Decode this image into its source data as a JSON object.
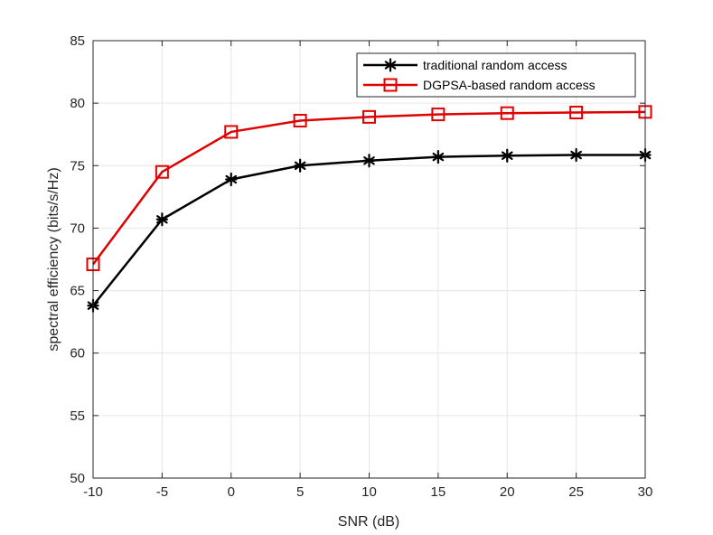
{
  "chart_data": {
    "type": "line",
    "title": "",
    "xlabel": "SNR (dB)",
    "ylabel": "spectral efficiency (bits/s/Hz)",
    "x": [
      -10,
      -5,
      0,
      5,
      10,
      15,
      20,
      25,
      30
    ],
    "xlim": [
      -10,
      30
    ],
    "ylim": [
      50,
      85
    ],
    "xticks": [
      -10,
      -5,
      0,
      5,
      10,
      15,
      20,
      25,
      30
    ],
    "yticks": [
      50,
      55,
      60,
      65,
      70,
      75,
      80,
      85
    ],
    "xtick_labels": [
      "-10",
      "-5",
      "0",
      "5",
      "10",
      "15",
      "20",
      "25",
      "30"
    ],
    "ytick_labels": [
      "50",
      "55",
      "60",
      "65",
      "70",
      "75",
      "80",
      "85"
    ],
    "grid": true,
    "legend_position": "top-right",
    "series": [
      {
        "name": "traditional random access",
        "color": "#000000",
        "marker": "asterisk",
        "values": [
          63.8,
          70.7,
          73.9,
          75.0,
          75.4,
          75.7,
          75.8,
          75.85,
          75.85
        ]
      },
      {
        "name": "DGPSA-based random access",
        "color": "#e00000",
        "marker": "square",
        "values": [
          67.1,
          74.5,
          77.7,
          78.6,
          78.9,
          79.1,
          79.2,
          79.25,
          79.3
        ]
      }
    ]
  }
}
